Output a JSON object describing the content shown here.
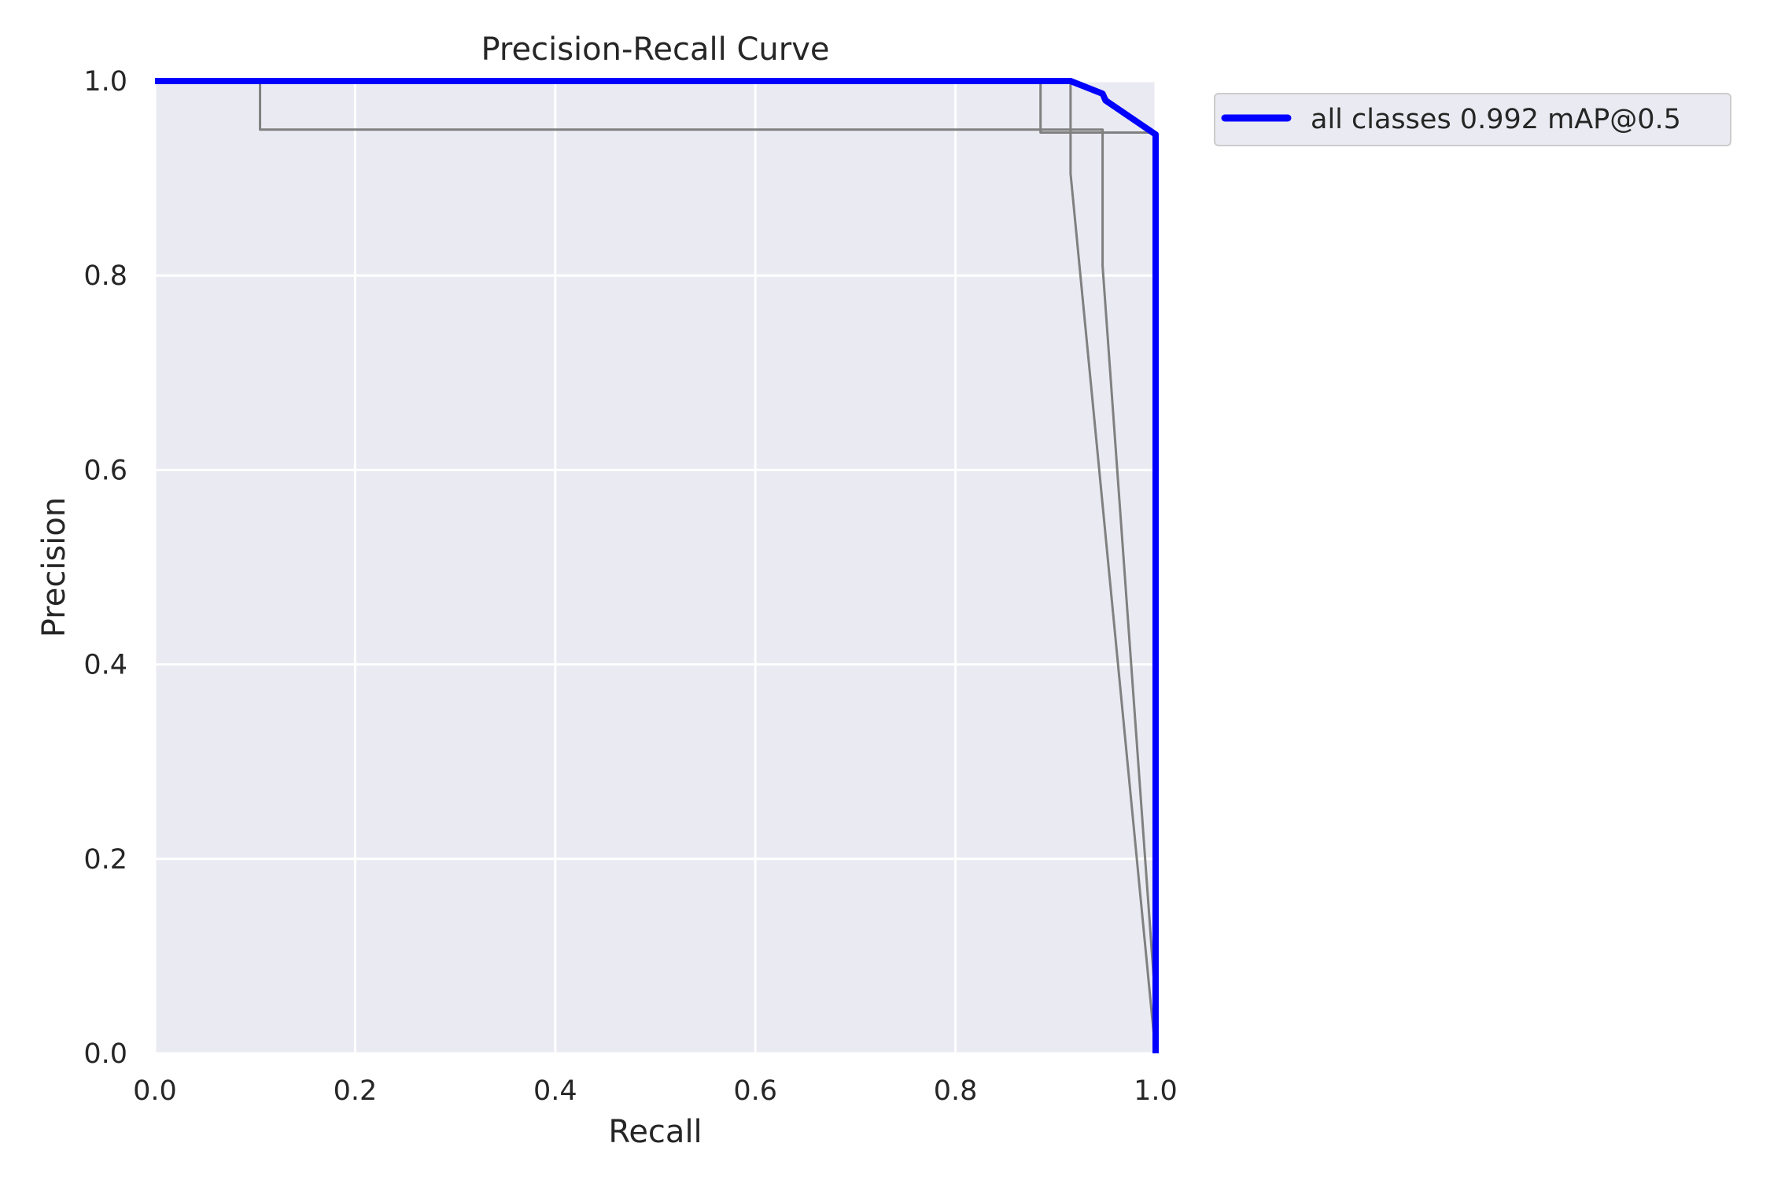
{
  "chart_data": {
    "type": "line",
    "title": "Precision-Recall Curve",
    "xlabel": "Recall",
    "ylabel": "Precision",
    "xlim": [
      0,
      1
    ],
    "ylim": [
      0,
      1
    ],
    "xticks": [
      "0.0",
      "0.2",
      "0.4",
      "0.6",
      "0.8",
      "1.0"
    ],
    "yticks": [
      "0.0",
      "0.2",
      "0.4",
      "0.6",
      "0.8",
      "1.0"
    ],
    "grid": true,
    "legend_position": "outside-top-right",
    "series": [
      {
        "color": "#808080",
        "points": [
          [
            0,
            1.0
          ],
          [
            0.105,
            1.0
          ],
          [
            0.105,
            0.95
          ],
          [
            0.947,
            0.95
          ],
          [
            0.947,
            0.81
          ],
          [
            1.0,
            0.05
          ]
        ]
      },
      {
        "color": "#808080",
        "points": [
          [
            0,
            1.0
          ],
          [
            0.885,
            1.0
          ],
          [
            0.885,
            0.947
          ],
          [
            1.0,
            0.947
          ],
          [
            1.0,
            0.0
          ]
        ]
      },
      {
        "color": "#808080",
        "points": [
          [
            0,
            1.0
          ],
          [
            0.915,
            1.0
          ],
          [
            0.915,
            0.905
          ],
          [
            1.0,
            0.0
          ]
        ]
      },
      {
        "name": "all classes 0.992 mAP@0.5",
        "color": "#0000ff",
        "bold": true,
        "points": [
          [
            0,
            1.0
          ],
          [
            0.915,
            1.0
          ],
          [
            0.947,
            0.987
          ],
          [
            0.95,
            0.98
          ],
          [
            1.0,
            0.945
          ],
          [
            1.0,
            0.0
          ]
        ]
      }
    ]
  }
}
